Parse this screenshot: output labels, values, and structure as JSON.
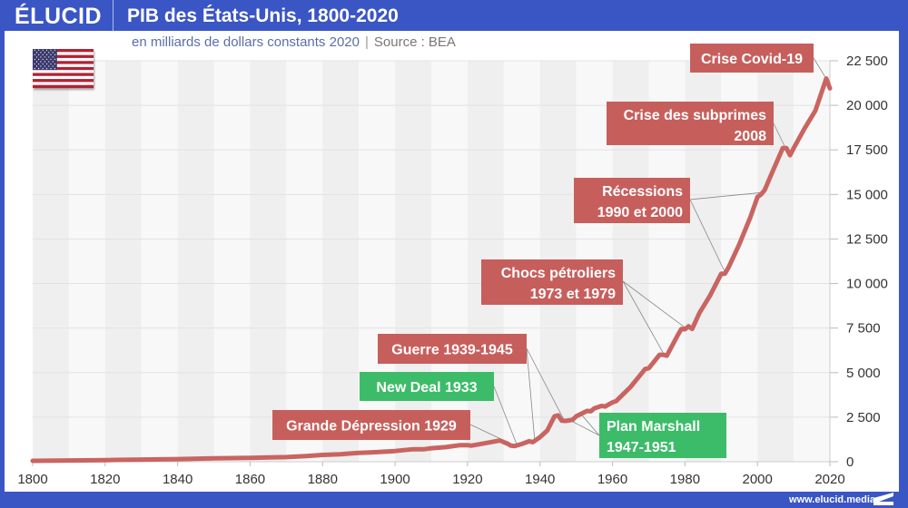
{
  "header": {
    "logo": "ÉLUCID",
    "title": "PIB des États-Unis, 1800-2020"
  },
  "subtitle": {
    "unit": "en milliards de dollars constants 2020",
    "separator": "|",
    "source": "Source : BEA"
  },
  "flag": {
    "icon": "us-flag-icon"
  },
  "footer": {
    "url": "www.elucid.media"
  },
  "colors": {
    "frame": "#3a55c4",
    "line": "#c96461",
    "annotation_red": "#c65f5c",
    "annotation_green": "#3cbc68",
    "band_dark": "#efefef",
    "band_light": "#f8f8f8"
  },
  "chart_data": {
    "type": "line",
    "title": "PIB des États-Unis, 1800-2020",
    "subtitle": "en milliards de dollars constants 2020 | Source : BEA",
    "xlabel": "",
    "ylabel": "",
    "xlim": [
      1800,
      2020
    ],
    "ylim": [
      0,
      22500
    ],
    "x_ticks": [
      1800,
      1820,
      1840,
      1860,
      1880,
      1900,
      1920,
      1940,
      1960,
      1980,
      2000,
      2020
    ],
    "x_tick_labels": [
      "1800",
      "1820",
      "1840",
      "1860",
      "1880",
      "1900",
      "1920",
      "1940",
      "1960",
      "1980",
      "2000",
      "2020"
    ],
    "y_ticks": [
      0,
      2500,
      5000,
      7500,
      10000,
      12500,
      15000,
      17500,
      20000,
      22500
    ],
    "y_tick_labels": [
      "0",
      "2 500",
      "5 000",
      "7 500",
      "10 000",
      "12 500",
      "15 000",
      "17 500",
      "20 000",
      "22 500"
    ],
    "y_axis_position": "right",
    "grid": true,
    "background_bands": "alternating every 10 years",
    "series": [
      {
        "name": "PIB",
        "x": [
          1800,
          1810,
          1820,
          1830,
          1840,
          1850,
          1860,
          1865,
          1870,
          1875,
          1880,
          1885,
          1890,
          1893,
          1895,
          1900,
          1905,
          1908,
          1910,
          1914,
          1918,
          1920,
          1921,
          1925,
          1929,
          1930,
          1931,
          1932,
          1933,
          1935,
          1937,
          1938,
          1940,
          1942,
          1944,
          1945,
          1946,
          1947,
          1949,
          1950,
          1953,
          1954,
          1955,
          1957,
          1958,
          1960,
          1961,
          1965,
          1969,
          1970,
          1973,
          1974,
          1975,
          1978,
          1979,
          1980,
          1981,
          1982,
          1984,
          1987,
          1990,
          1991,
          1992,
          1995,
          1998,
          2000,
          2001,
          2002,
          2004,
          2007,
          2008,
          2009,
          2010,
          2013,
          2016,
          2019,
          2020
        ],
        "values": [
          50,
          70,
          90,
          120,
          150,
          190,
          220,
          240,
          260,
          310,
          380,
          420,
          500,
          520,
          540,
          600,
          700,
          700,
          760,
          820,
          930,
          930,
          900,
          1050,
          1190,
          1100,
          1020,
          900,
          880,
          1000,
          1150,
          1100,
          1380,
          1750,
          2550,
          2600,
          2300,
          2290,
          2350,
          2550,
          2850,
          2830,
          3000,
          3130,
          3100,
          3330,
          3400,
          4200,
          5200,
          5250,
          6000,
          6000,
          5950,
          7100,
          7450,
          7430,
          7600,
          7450,
          8350,
          9350,
          10550,
          10550,
          10900,
          12200,
          13700,
          14850,
          15000,
          15250,
          16200,
          17600,
          17600,
          17200,
          17600,
          18700,
          19700,
          21500,
          20950
        ]
      }
    ],
    "annotations": [
      {
        "text": [
          "Crise Covid-19"
        ],
        "color": "red",
        "target_year": 2020
      },
      {
        "text": [
          "Crise des subprimes",
          "2008"
        ],
        "color": "red",
        "target_year": 2008
      },
      {
        "text": [
          "Récessions",
          "1990 et 2000"
        ],
        "color": "red",
        "target_years": [
          1990,
          2000
        ]
      },
      {
        "text": [
          "Chocs pétroliers",
          "1973 et 1979"
        ],
        "color": "red",
        "target_years": [
          1973,
          1979
        ]
      },
      {
        "text": [
          "Guerre 1939-1945"
        ],
        "color": "red",
        "target_years": [
          1939,
          1945
        ]
      },
      {
        "text": [
          "New Deal 1933"
        ],
        "color": "green",
        "target_year": 1933
      },
      {
        "text": [
          "Grande Dépression 1929"
        ],
        "color": "red",
        "target_year": 1929
      },
      {
        "text": [
          "Plan Marshall",
          "1947-1951"
        ],
        "color": "green",
        "target_years": [
          1947,
          1951
        ]
      }
    ]
  }
}
